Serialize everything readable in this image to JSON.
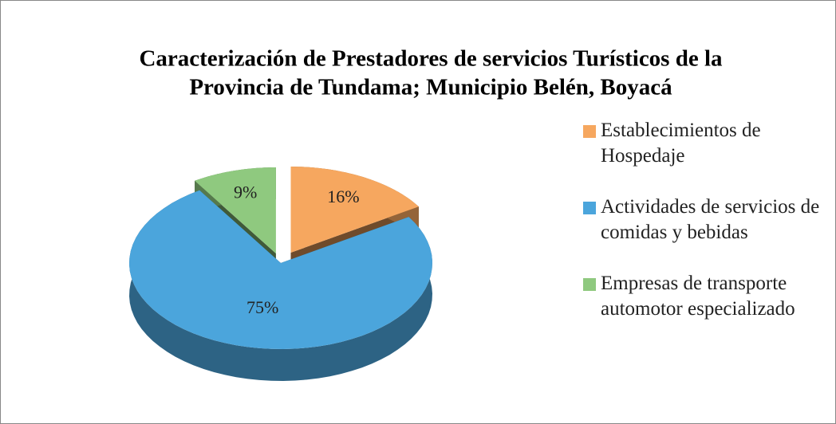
{
  "chart_data": {
    "type": "pie",
    "title": [
      "Caracterización de Prestadores de servicios Turísticos de la",
      "Provincia de Tundama; Municipio Belén, Boyacá"
    ],
    "categories": [
      "Establecimientos de Hospedaje",
      "Actividades de servicios de comidas y bebidas",
      "Empresas de transporte automotor especializado"
    ],
    "values": [
      16,
      75,
      9
    ],
    "value_labels": [
      "16%",
      "75%",
      "9%"
    ],
    "colors": [
      "#f6a75f",
      "#4ba5dc",
      "#8fc97f"
    ],
    "legend": "right"
  }
}
